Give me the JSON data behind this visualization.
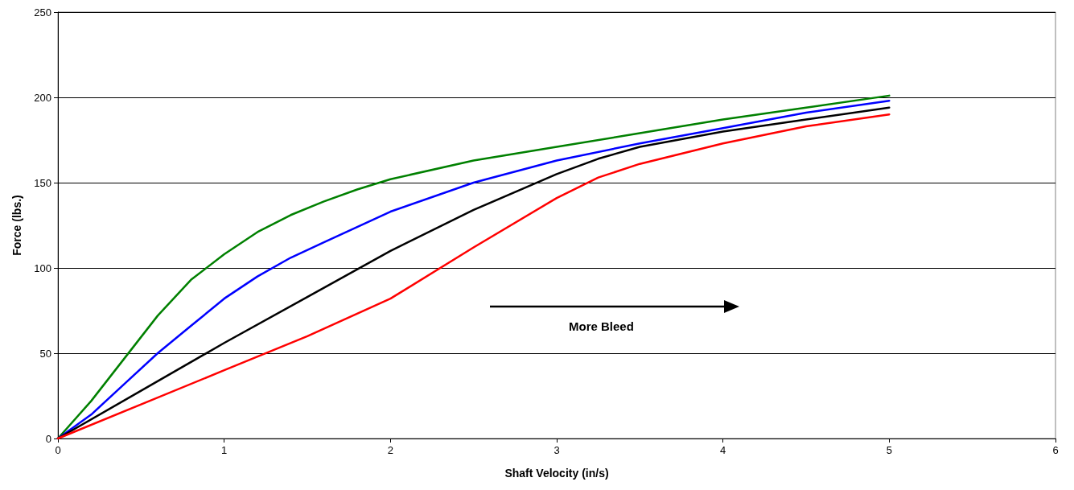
{
  "chart_data": {
    "type": "line",
    "xlabel": "Shaft Velocity (in/s)",
    "ylabel": "Force (lbs.)",
    "annotations": [
      "More Bleed"
    ],
    "xlim": [
      0,
      6
    ],
    "xticks": [
      0,
      1,
      2,
      3,
      4,
      5,
      6
    ],
    "ylim": [
      0,
      250
    ],
    "yticks": [
      0,
      50,
      100,
      150,
      200,
      250
    ],
    "grid": "y",
    "marker": "none",
    "line_style": "solid",
    "series": [
      {
        "color": "#008000",
        "x": [
          0,
          0.2,
          0.4,
          0.6,
          0.8,
          1.0,
          1.2,
          1.4,
          1.6,
          1.8,
          2.0,
          2.5,
          3.0,
          3.5,
          4.0,
          4.5,
          5.0
        ],
        "values": [
          0,
          22,
          47,
          72,
          93,
          108,
          121,
          131,
          139,
          146,
          152,
          163,
          171,
          179,
          187,
          194,
          201
        ]
      },
      {
        "color": "#0000ff",
        "x": [
          0,
          0.2,
          0.4,
          0.6,
          0.8,
          1.0,
          1.2,
          1.4,
          1.6,
          1.8,
          2.0,
          2.5,
          3.0,
          3.5,
          4.0,
          4.5,
          5.0
        ],
        "values": [
          0,
          14,
          32,
          50,
          66,
          82,
          95,
          106,
          115,
          124,
          133,
          150,
          163,
          173,
          182,
          191,
          198
        ]
      },
      {
        "color": "#000000",
        "x": [
          0,
          0.5,
          1.0,
          1.5,
          2.0,
          2.5,
          3.0,
          3.25,
          3.5,
          4.0,
          4.5,
          5.0
        ],
        "values": [
          0,
          28,
          56,
          83,
          110,
          134,
          155,
          164,
          171,
          180,
          187,
          194
        ]
      },
      {
        "color": "#ff0000",
        "x": [
          0,
          0.5,
          1.0,
          1.5,
          2.0,
          2.5,
          3.0,
          3.25,
          3.5,
          4.0,
          4.5,
          5.0
        ],
        "values": [
          0,
          20,
          40,
          60,
          82,
          112,
          141,
          153,
          161,
          173,
          183,
          190
        ]
      }
    ]
  }
}
